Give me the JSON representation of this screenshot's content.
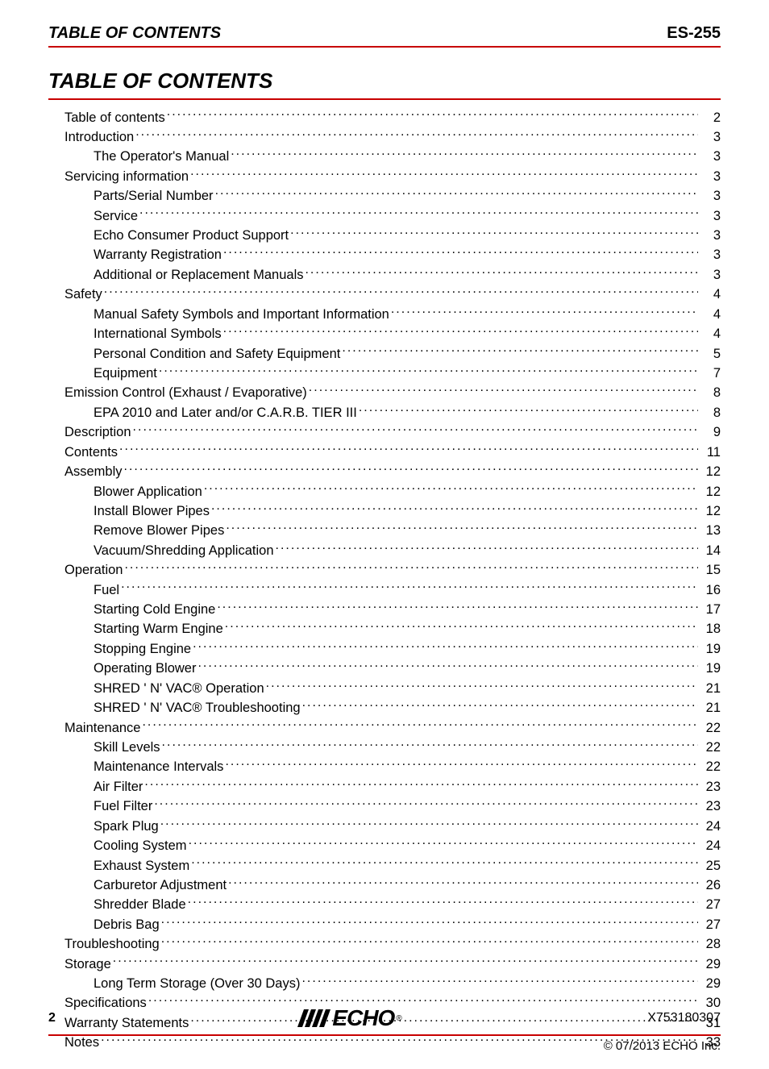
{
  "colors": {
    "accent": "#c80000",
    "text": "#000000",
    "background": "#ffffff"
  },
  "typography": {
    "body_font": "Arial",
    "body_size_pt": 12,
    "header_size_pt": 15,
    "title_size_pt": 20
  },
  "header": {
    "left": "TABLE OF CONTENTS",
    "right": "ES-255"
  },
  "title": "TABLE OF CONTENTS",
  "toc": [
    {
      "level": 0,
      "label": "Table of contents",
      "page": "2"
    },
    {
      "level": 0,
      "label": "Introduction",
      "page": "3"
    },
    {
      "level": 1,
      "label": "The Operator's Manual",
      "page": "3"
    },
    {
      "level": 0,
      "label": "Servicing information",
      "page": "3"
    },
    {
      "level": 1,
      "label": "Parts/Serial Number",
      "page": "3"
    },
    {
      "level": 1,
      "label": "Service",
      "page": "3"
    },
    {
      "level": 1,
      "label": "Echo Consumer Product Support",
      "page": "3"
    },
    {
      "level": 1,
      "label": "Warranty Registration",
      "page": "3"
    },
    {
      "level": 1,
      "label": "Additional or Replacement Manuals",
      "page": "3"
    },
    {
      "level": 0,
      "label": "Safety",
      "page": "4"
    },
    {
      "level": 1,
      "label": "Manual Safety Symbols and Important Information",
      "page": "4"
    },
    {
      "level": 1,
      "label": "International Symbols",
      "page": "4"
    },
    {
      "level": 1,
      "label": "Personal Condition and Safety Equipment",
      "page": "5"
    },
    {
      "level": 1,
      "label": "Equipment",
      "page": "7"
    },
    {
      "level": 0,
      "label": "Emission Control (Exhaust / Evaporative)",
      "page": "8"
    },
    {
      "level": 1,
      "label": "EPA 2010 and Later and/or C.A.R.B. TIER III",
      "page": "8"
    },
    {
      "level": 0,
      "label": "Description",
      "page": "9"
    },
    {
      "level": 0,
      "label": "Contents",
      "page": "11"
    },
    {
      "level": 0,
      "label": "Assembly",
      "page": "12"
    },
    {
      "level": 1,
      "label": "Blower Application",
      "page": "12"
    },
    {
      "level": 1,
      "label": "Install Blower Pipes",
      "page": "12"
    },
    {
      "level": 1,
      "label": "Remove Blower Pipes",
      "page": "13"
    },
    {
      "level": 1,
      "label": "Vacuum/Shredding Application",
      "page": "14"
    },
    {
      "level": 0,
      "label": "Operation",
      "page": "15"
    },
    {
      "level": 1,
      "label": "Fuel",
      "page": "16"
    },
    {
      "level": 1,
      "label": "Starting Cold Engine",
      "page": "17"
    },
    {
      "level": 1,
      "label": "Starting Warm Engine",
      "page": "18"
    },
    {
      "level": 1,
      "label": "Stopping Engine",
      "page": "19"
    },
    {
      "level": 1,
      "label": "Operating Blower",
      "page": "19"
    },
    {
      "level": 1,
      "label": "SHRED ' N' VAC® Operation",
      "page": "21"
    },
    {
      "level": 1,
      "label": "SHRED ' N' VAC®  Troubleshooting",
      "page": "21"
    },
    {
      "level": 0,
      "label": "Maintenance",
      "page": "22"
    },
    {
      "level": 1,
      "label": "Skill Levels",
      "page": "22"
    },
    {
      "level": 1,
      "label": "Maintenance Intervals",
      "page": "22"
    },
    {
      "level": 1,
      "label": "Air Filter",
      "page": "23"
    },
    {
      "level": 1,
      "label": "Fuel Filter",
      "page": "23"
    },
    {
      "level": 1,
      "label": "Spark Plug",
      "page": "24"
    },
    {
      "level": 1,
      "label": "Cooling System",
      "page": "24"
    },
    {
      "level": 1,
      "label": "Exhaust System",
      "page": "25"
    },
    {
      "level": 1,
      "label": "Carburetor Adjustment",
      "page": "26"
    },
    {
      "level": 1,
      "label": "Shredder Blade",
      "page": "27"
    },
    {
      "level": 1,
      "label": "Debris Bag",
      "page": "27"
    },
    {
      "level": 0,
      "label": "Troubleshooting",
      "page": "28"
    },
    {
      "level": 0,
      "label": "Storage",
      "page": "29"
    },
    {
      "level": 1,
      "label": "Long Term Storage (Over 30 Days)",
      "page": "29"
    },
    {
      "level": 0,
      "label": "Specifications",
      "page": "30"
    },
    {
      "level": 0,
      "label": "Warranty Statements",
      "page": "31"
    },
    {
      "level": 0,
      "label": "Notes",
      "page": "33"
    }
  ],
  "footer": {
    "page_number": "2",
    "logo_text": "ECHO",
    "document_number": "X753180307",
    "copyright": "© 07/2013 ECHO Inc."
  }
}
